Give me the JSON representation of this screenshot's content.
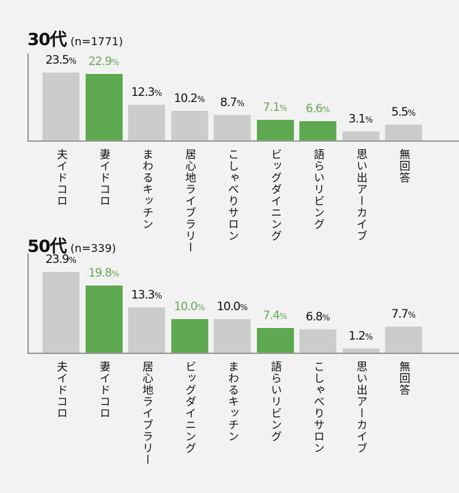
{
  "chart_data": [
    {
      "type": "bar",
      "title": "30代",
      "subtitle": "(n=1771)",
      "categories": [
        "夫イドコロ",
        "妻イドコロ",
        "まわるキッチン",
        "居心地ライブラリー",
        "こしゃべりサロン",
        "ビッグダイニング",
        "語らいリビング",
        "思い出アーカイブ",
        "無回答"
      ],
      "values": [
        23.5,
        22.9,
        12.3,
        10.2,
        8.7,
        7.1,
        6.6,
        3.1,
        5.5
      ],
      "highlight": [
        false,
        true,
        false,
        false,
        false,
        true,
        true,
        false,
        false
      ],
      "unit": "%",
      "ylim": [
        0,
        30
      ],
      "grid": false
    },
    {
      "type": "bar",
      "title": "50代",
      "subtitle": "(n=339)",
      "categories": [
        "夫イドコロ",
        "妻イドコロ",
        "居心地ライブラリー",
        "ビッグダイニング",
        "まわるキッチン",
        "語らいリビング",
        "こしゃべりサロン",
        "思い出アーカイブ",
        "無回答"
      ],
      "values": [
        23.9,
        19.8,
        13.3,
        10.0,
        10.0,
        7.4,
        6.8,
        1.2,
        7.7
      ],
      "highlight": [
        false,
        true,
        false,
        true,
        false,
        true,
        false,
        false,
        false
      ],
      "unit": "%",
      "ylim": [
        0,
        29.4
      ],
      "grid": false
    }
  ],
  "colors": {
    "bar": "#cccccc",
    "highlight": "#5ea94f",
    "highlight_label": "#6aa85a",
    "background": "#f2f2f2"
  }
}
